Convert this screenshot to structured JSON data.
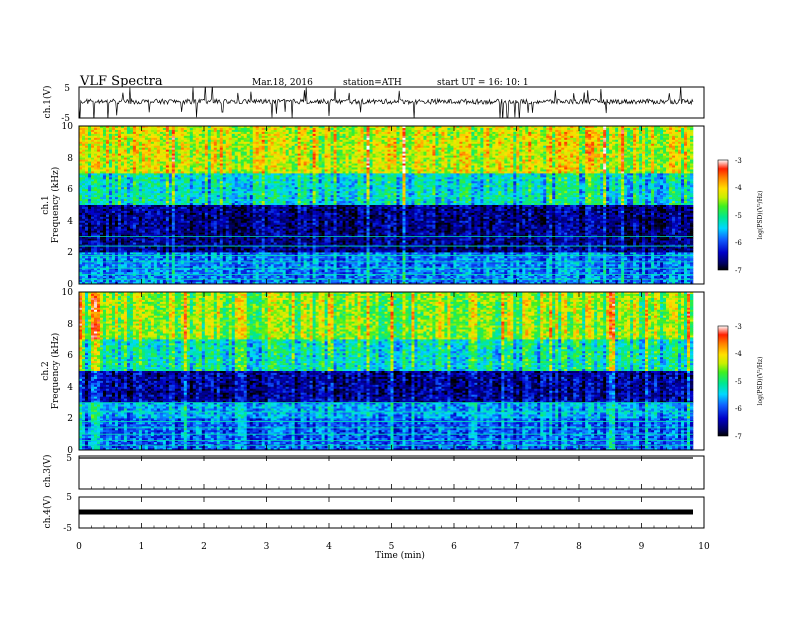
{
  "header": {
    "title": "VLF  Spectra",
    "date": "Mar.18, 2016",
    "station": "station=ATH",
    "start": "start  UT  =    16: 10: 1"
  },
  "x_axis": {
    "label": "Time  (min)",
    "ticks": [
      "0",
      "1",
      "2",
      "3",
      "4",
      "5",
      "6",
      "7",
      "8",
      "9",
      "10"
    ]
  },
  "panels": {
    "ch1_wave": {
      "label": "ch.1(V)",
      "ticks": [
        "5",
        "-5"
      ]
    },
    "ch1_spec": {
      "label_top": "ch.1",
      "label": "Frequency  (kHz)",
      "ticks": [
        "10",
        "8",
        "6",
        "4",
        "2",
        "0"
      ]
    },
    "ch2_spec": {
      "label_top": "ch.2",
      "label": "Frequency  (kHz)",
      "ticks": [
        "10",
        "8",
        "6",
        "4",
        "2",
        "0"
      ]
    },
    "ch3_wave": {
      "label": "ch.3(V)",
      "ticks": [
        "5"
      ]
    },
    "ch4_wave": {
      "label": "ch.4(V)",
      "ticks": [
        "5",
        "-5"
      ]
    }
  },
  "colorbars": [
    {
      "label": "log(PSD)(V²/Hz)",
      "ticks": [
        "-3",
        "-4",
        "-5",
        "-6",
        "-7"
      ]
    },
    {
      "label": "log(PSD)(V²/Hz)",
      "ticks": [
        "-3",
        "-4",
        "-5",
        "-6",
        "-7"
      ]
    }
  ],
  "chart_data": [
    {
      "type": "line",
      "title": "VLF  Spectra",
      "ylabel": "ch.1(V)",
      "xlim": [
        0,
        10
      ],
      "ylim": [
        -5,
        5
      ],
      "x_unit": "min",
      "description_values": "noisy waveform about 0 V with spikes to about ±5 V, data from 0 to ~9.8 min"
    },
    {
      "type": "heatmap",
      "ylabel": "Frequency  (kHz)",
      "xlabel": "Time  (min)",
      "xlim": [
        0,
        10
      ],
      "ylim": [
        0,
        10
      ],
      "colorbar_range": [
        -7,
        -3
      ],
      "colorbar_label": "log(PSD)(V²/Hz)",
      "bands": [
        {
          "freq_range": [
            0,
            2
          ],
          "logpsd": -5.8
        },
        {
          "freq_range": [
            2,
            5
          ],
          "logpsd": -6.6
        },
        {
          "freq_range": [
            5,
            7
          ],
          "logpsd": -5.3
        },
        {
          "freq_range": [
            7,
            10
          ],
          "logpsd": -4.3
        }
      ]
    },
    {
      "type": "heatmap",
      "ylabel": "Frequency  (kHz)",
      "xlabel": "Time  (min)",
      "xlim": [
        0,
        10
      ],
      "ylim": [
        0,
        10
      ],
      "colorbar_range": [
        -7,
        -3
      ],
      "colorbar_label": "log(PSD)(V²/Hz)",
      "bands": [
        {
          "freq_range": [
            0,
            2
          ],
          "logpsd": -5.9
        },
        {
          "freq_range": [
            2,
            3
          ],
          "logpsd": -5.6
        },
        {
          "freq_range": [
            3,
            5
          ],
          "logpsd": -6.5
        },
        {
          "freq_range": [
            5,
            7
          ],
          "logpsd": -5.2
        },
        {
          "freq_range": [
            7,
            10
          ],
          "logpsd": -4.5
        }
      ]
    },
    {
      "type": "line",
      "ylabel": "ch.3(V)",
      "xlim": [
        0,
        10
      ],
      "ylim": [
        -5,
        5
      ],
      "values_note": "flat at about 5 V"
    },
    {
      "type": "line",
      "ylabel": "ch.4(V)",
      "xlim": [
        0,
        10
      ],
      "ylim": [
        -5,
        5
      ],
      "values_note": "flat at about 0 V"
    }
  ]
}
